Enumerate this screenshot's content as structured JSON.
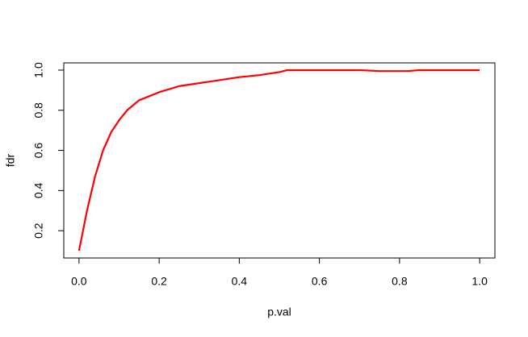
{
  "chart_data": {
    "type": "line",
    "xlabel": "p.val",
    "ylabel": "fdr",
    "x": [
      0,
      0.02,
      0.04,
      0.06,
      0.08,
      0.1,
      0.12,
      0.15,
      0.2,
      0.25,
      0.3,
      0.35,
      0.4,
      0.45,
      0.5,
      0.52,
      0.6,
      0.7,
      0.75,
      0.8,
      0.82,
      0.85,
      0.9,
      1.0
    ],
    "series": [
      {
        "color": "#ff0000",
        "values": [
          0.1,
          0.3,
          0.47,
          0.6,
          0.69,
          0.75,
          0.8,
          0.85,
          0.89,
          0.92,
          0.935,
          0.95,
          0.965,
          0.975,
          0.99,
          1.0,
          1.0,
          1.0,
          0.995,
          0.995,
          0.995,
          1.0,
          1.0,
          1.0
        ]
      }
    ],
    "xlim": [
      -0.038,
      1.038
    ],
    "ylim": [
      0.064,
      1.036
    ],
    "xticks": [
      {
        "value": 0,
        "label": "0.0"
      },
      {
        "value": 0.2,
        "label": "0.2"
      },
      {
        "value": 0.4,
        "label": "0.4"
      },
      {
        "value": 0.6,
        "label": "0.6"
      },
      {
        "value": 0.8,
        "label": "0.8"
      },
      {
        "value": 1.0,
        "label": "1.0"
      }
    ],
    "yticks": [
      {
        "value": 0.2,
        "label": "0.2"
      },
      {
        "value": 0.4,
        "label": "0.4"
      },
      {
        "value": 0.6,
        "label": "0.6"
      },
      {
        "value": 0.8,
        "label": "0.8"
      },
      {
        "value": 1.0,
        "label": "1.0"
      }
    ]
  }
}
